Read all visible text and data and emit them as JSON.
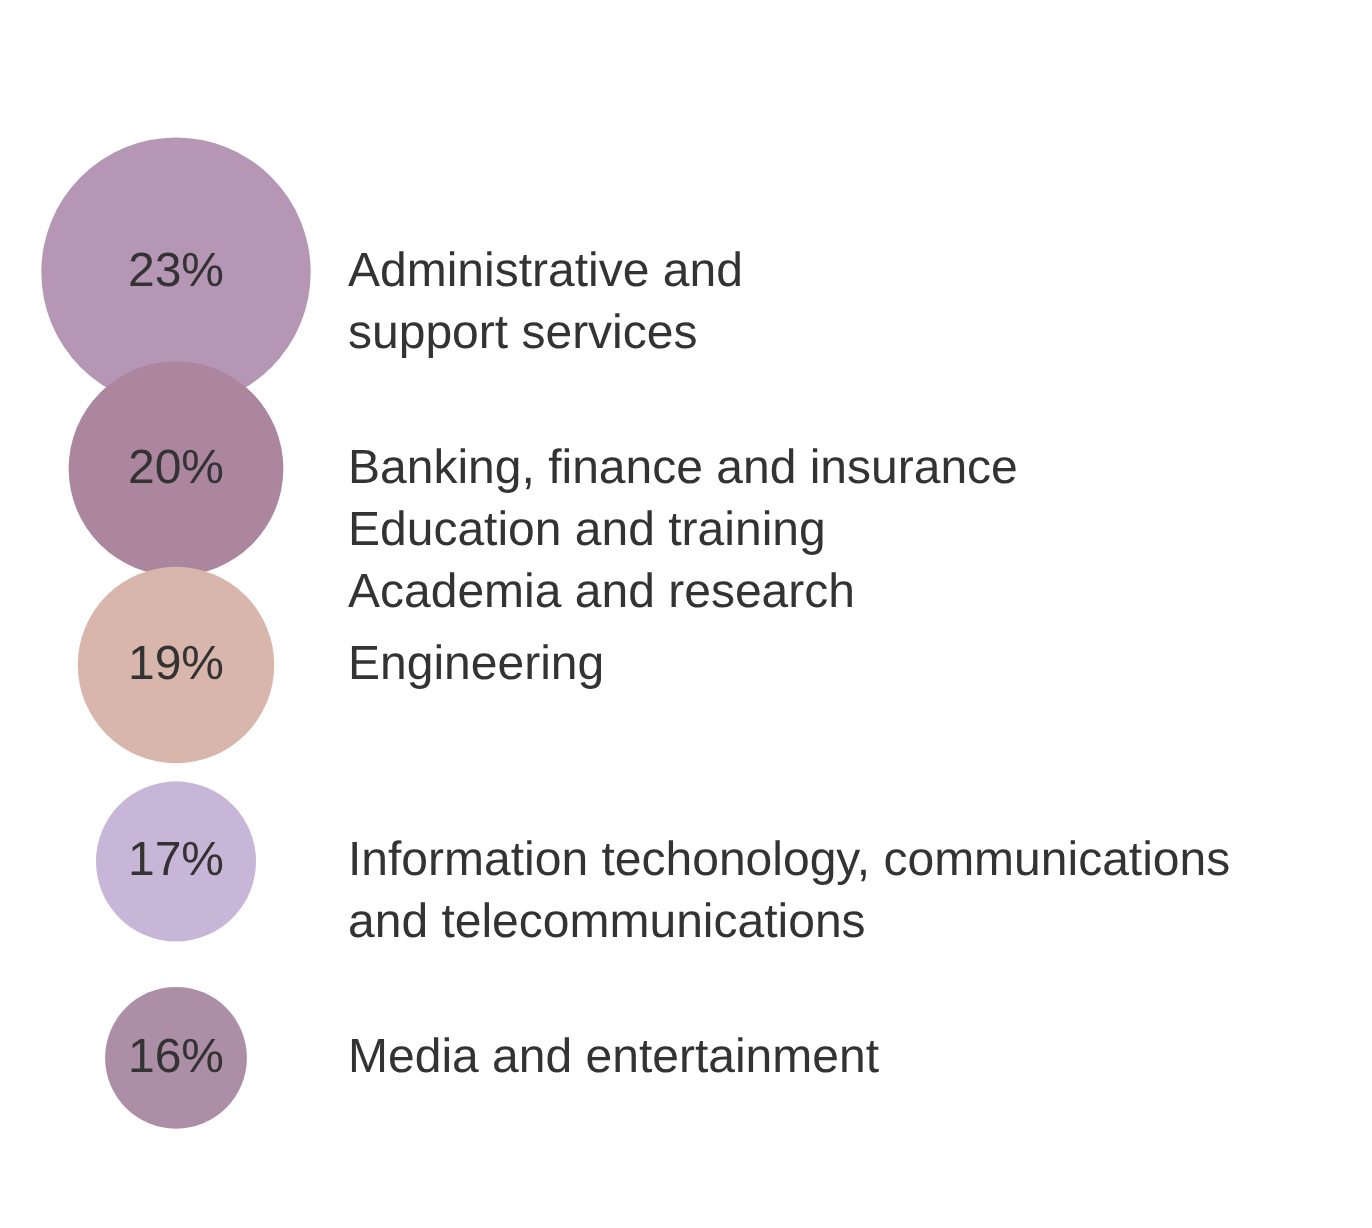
{
  "chart_data": {
    "type": "other",
    "categories": [
      "Administrative and\nsupport services",
      "Banking, finance and insurance\nEducation and training\nAcademia and research",
      "Engineering",
      "Information techonology, communications\nand telecommunications",
      "Media and entertainment"
    ],
    "values": [
      23,
      20,
      19,
      17,
      16
    ],
    "colors": [
      "#b596b4",
      "#ac869f",
      "#d9b6ab",
      "#c8b6d8",
      "#ad8ea7"
    ],
    "value_labels": [
      "23%",
      "20%",
      "19%",
      "17%",
      "16%"
    ]
  }
}
